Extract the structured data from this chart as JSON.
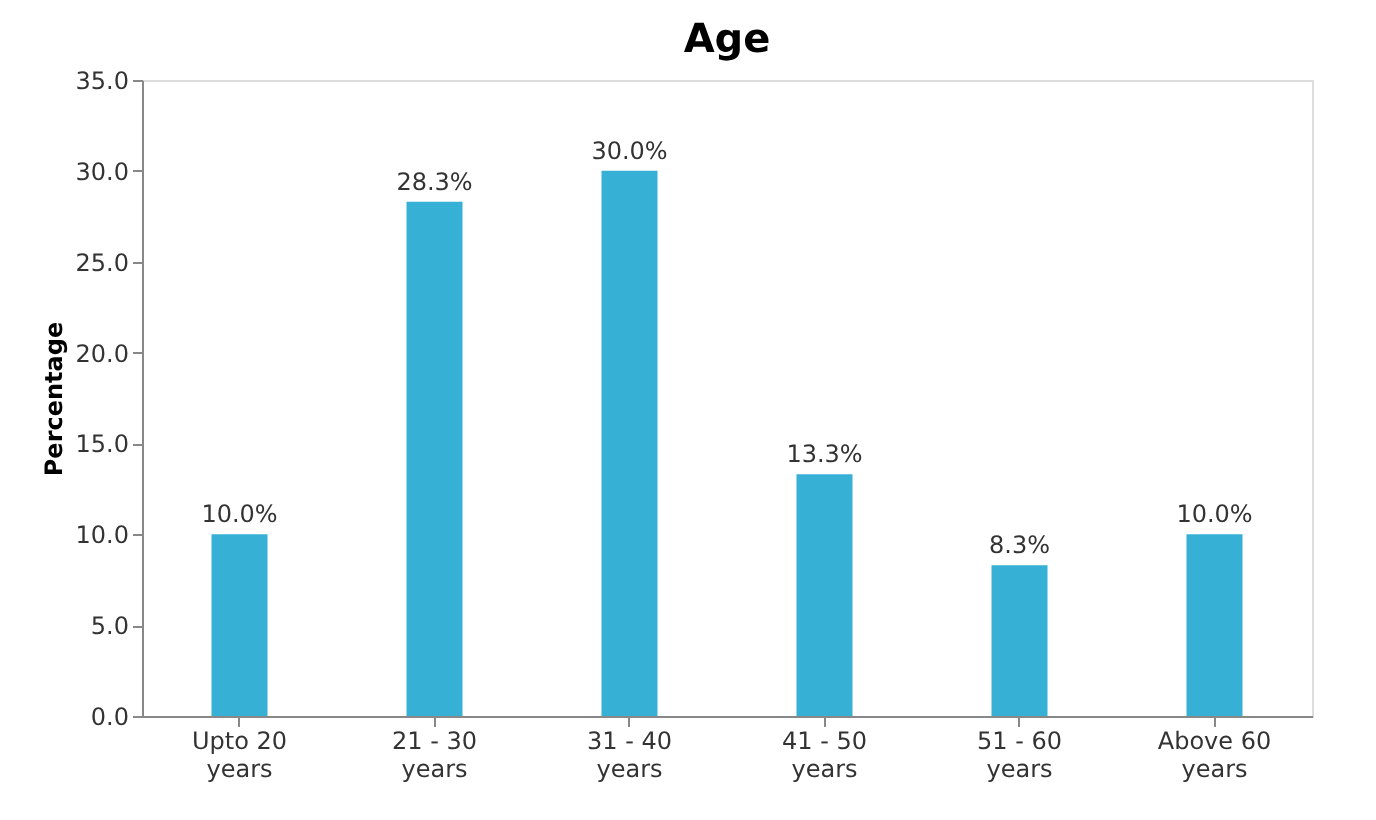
{
  "chart_data": {
    "type": "bar",
    "title": "Age",
    "ylabel": "Percentage",
    "categories": [
      "Upto 20 years",
      "21 - 30 years",
      "31 - 40 years",
      "41 - 50 years",
      "51 - 60 years",
      "Above 60 years"
    ],
    "values": [
      10.0,
      28.3,
      30.0,
      13.3,
      8.3,
      10.0
    ],
    "value_labels": [
      "10.0%",
      "28.3%",
      "30.0%",
      "13.3%",
      "8.3%",
      "10.0%"
    ],
    "color": "#36b0d4",
    "ylim": [
      0,
      35
    ],
    "yticks": [
      {
        "value": 0,
        "label": "0.0"
      },
      {
        "value": 5,
        "label": "5.0"
      },
      {
        "value": 10,
        "label": "10.0"
      },
      {
        "value": 15,
        "label": "15.0"
      },
      {
        "value": 20,
        "label": "20.0"
      },
      {
        "value": 25,
        "label": "25.0"
      },
      {
        "value": 30,
        "label": "30.0"
      },
      {
        "value": 35,
        "label": "35.0"
      }
    ],
    "grid": false
  }
}
